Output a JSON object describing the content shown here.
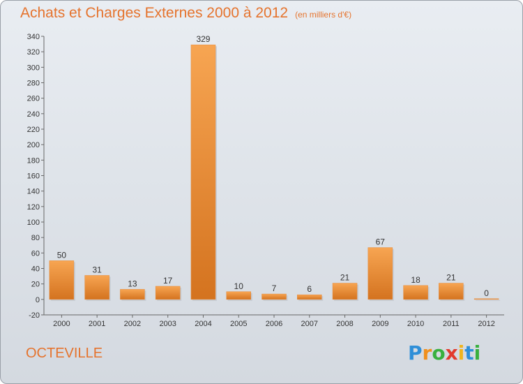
{
  "header": {
    "title": "Achats et Charges Externes 2000 à 2012",
    "unit": "(en milliers d'€)"
  },
  "footer": {
    "city": "OCTEVILLE",
    "logo_letters": [
      "P",
      "r",
      "o",
      "x",
      "i",
      "t",
      "i"
    ],
    "logo_colors": [
      "#2f8fd8",
      "#f0901e",
      "#39b03f",
      "#e23a2d",
      "#f0b41e",
      "#2f8fd8",
      "#39b03f"
    ]
  },
  "colors": {
    "bar_light": "#f7a552",
    "bar_dark": "#d4731f",
    "accent": "#e5732d"
  },
  "chart_data": {
    "type": "bar",
    "title": "Achats et Charges Externes 2000 à 2012",
    "subtitle": "(en milliers d'€)",
    "categories": [
      "2000",
      "2001",
      "2002",
      "2003",
      "2004",
      "2005",
      "2006",
      "2007",
      "2008",
      "2009",
      "2010",
      "2011",
      "2012"
    ],
    "values": [
      50,
      31,
      13,
      17,
      329,
      10,
      7,
      6,
      21,
      67,
      18,
      21,
      0
    ],
    "ylim": [
      -20,
      340
    ],
    "yticks": [
      -20,
      0,
      20,
      40,
      60,
      80,
      100,
      120,
      140,
      160,
      180,
      200,
      220,
      240,
      260,
      280,
      300,
      320,
      340
    ],
    "grid": false,
    "legend": "none"
  }
}
